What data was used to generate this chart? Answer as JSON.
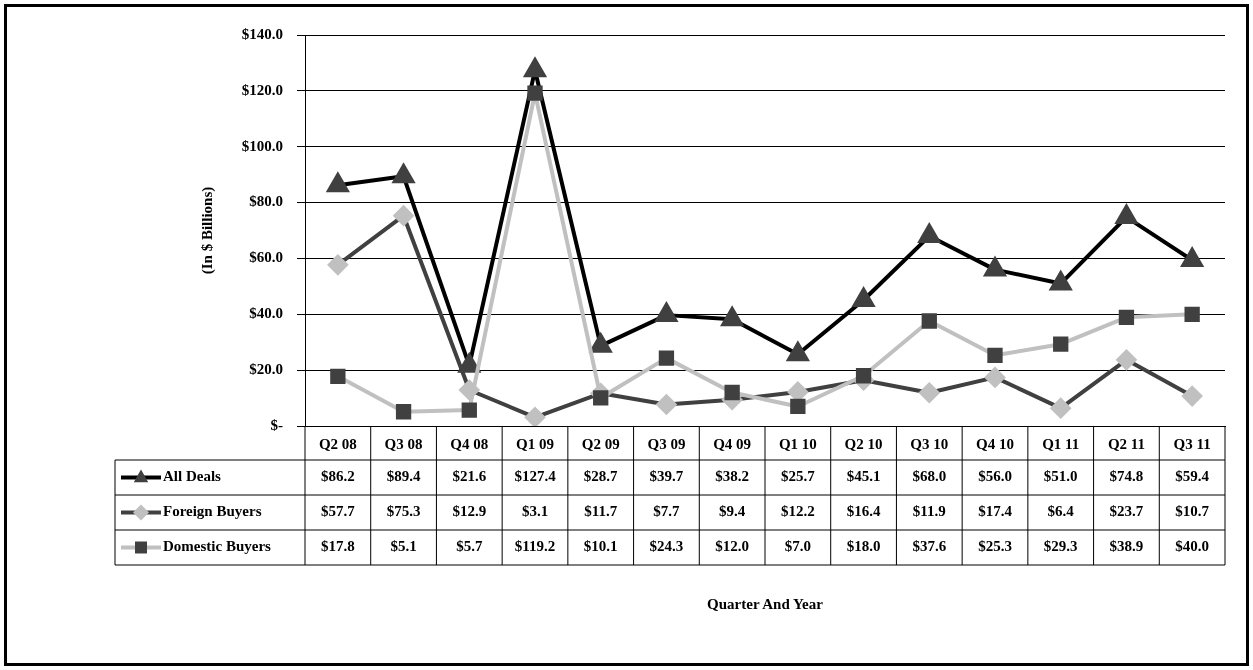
{
  "chart_data": {
    "type": "line",
    "ylabel": "(In $ Billions)",
    "annotations": [
      "Quarter And Year"
    ],
    "categories": [
      "Q2 08",
      "Q3 08",
      "Q4 08",
      "Q1 09",
      "Q2 09",
      "Q3 09",
      "Q4 09",
      "Q1 10",
      "Q2 10",
      "Q3 10",
      "Q4 10",
      "Q1 11",
      "Q2 11",
      "Q3 11"
    ],
    "series": [
      {
        "name": "All Deals",
        "color": "#000000",
        "marker": "triangle",
        "values": [
          86.2,
          89.4,
          21.6,
          127.4,
          28.7,
          39.7,
          38.2,
          25.7,
          45.1,
          68.0,
          56.0,
          51.0,
          74.8,
          59.4
        ],
        "value_labels": [
          "$86.2",
          "$89.4",
          "$21.6",
          "$127.4",
          "$28.7",
          "$39.7",
          "$38.2",
          "$25.7",
          "$45.1",
          "$68.0",
          "$56.0",
          "$51.0",
          "$74.8",
          "$59.4"
        ]
      },
      {
        "name": "Foreign Buyers",
        "color": "#404040",
        "marker": "diamond",
        "values": [
          57.7,
          75.3,
          12.9,
          3.1,
          11.7,
          7.7,
          9.4,
          12.2,
          16.4,
          11.9,
          17.4,
          6.4,
          23.7,
          10.7
        ],
        "value_labels": [
          "$57.7",
          "$75.3",
          "$12.9",
          "$3.1",
          "$11.7",
          "$7.7",
          "$9.4",
          "$12.2",
          "$16.4",
          "$11.9",
          "$17.4",
          "$6.4",
          "$23.7",
          "$10.7"
        ]
      },
      {
        "name": "Domestic Buyers",
        "color": "#c0c0c0",
        "marker": "square",
        "values": [
          17.8,
          5.1,
          5.7,
          119.2,
          10.1,
          24.3,
          12.0,
          7.0,
          18.0,
          37.6,
          25.3,
          29.3,
          38.9,
          40.0
        ],
        "value_labels": [
          "$17.8",
          "$5.1",
          "$5.7",
          "$119.2",
          "$10.1",
          "$24.3",
          "$12.0",
          "$7.0",
          "$18.0",
          "$37.6",
          "$25.3",
          "$29.3",
          "$38.9",
          "$40.0"
        ]
      }
    ],
    "ylim": [
      0,
      140
    ],
    "yticks": [
      {
        "value": 0,
        "label": "$-"
      },
      {
        "value": 20,
        "label": "$20.0"
      },
      {
        "value": 40,
        "label": "$40.0"
      },
      {
        "value": 60,
        "label": "$60.0"
      },
      {
        "value": 80,
        "label": "$80.0"
      },
      {
        "value": 100,
        "label": "$100.0"
      },
      {
        "value": 120,
        "label": "$120.0"
      },
      {
        "value": 140,
        "label": "$140.0"
      }
    ],
    "grid": "y",
    "legend": "bottom",
    "line_style": "solid"
  }
}
